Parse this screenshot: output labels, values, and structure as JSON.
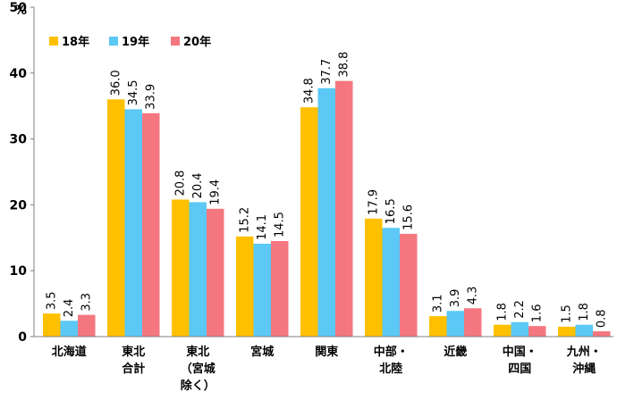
{
  "chart_data": {
    "type": "bar",
    "unit": "%",
    "ylim": [
      0,
      50
    ],
    "yticks": [
      0,
      10,
      20,
      30,
      40,
      50
    ],
    "grid": false,
    "legend": "top-left",
    "categories": [
      [
        "北海道"
      ],
      [
        "東北",
        "合計"
      ],
      [
        "東北",
        "（宮城",
        "除く）"
      ],
      [
        "宮城"
      ],
      [
        "関東"
      ],
      [
        "中部・",
        "北陸"
      ],
      [
        "近畿"
      ],
      [
        "中国・",
        "四国"
      ],
      [
        "九州・",
        "沖縄"
      ]
    ],
    "series": [
      {
        "name": "18年",
        "color": "#FFC000",
        "values": [
          3.5,
          36.0,
          20.8,
          15.2,
          34.8,
          17.9,
          3.1,
          1.8,
          1.5
        ]
      },
      {
        "name": "19年",
        "color": "#5BC8F5",
        "values": [
          2.4,
          34.5,
          20.4,
          14.1,
          37.7,
          16.5,
          3.9,
          2.2,
          1.8
        ]
      },
      {
        "name": "20年",
        "color": "#F4777F",
        "values": [
          3.3,
          33.9,
          19.4,
          14.5,
          38.8,
          15.6,
          4.3,
          1.6,
          0.8
        ]
      }
    ]
  }
}
